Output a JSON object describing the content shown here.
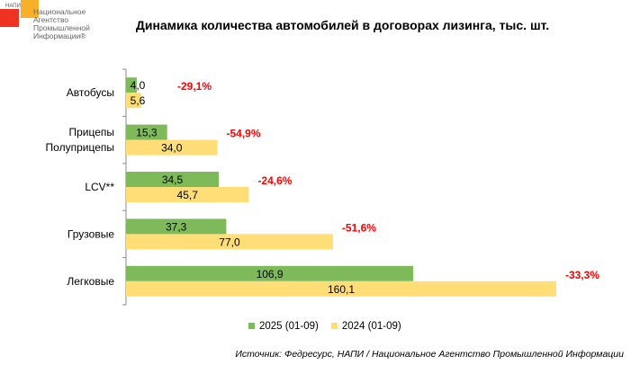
{
  "logo": {
    "small": "НАПИ",
    "lines": [
      "Национальное",
      "Агентство",
      "Промышленной",
      "Информации®"
    ]
  },
  "chart_data": {
    "type": "bar",
    "orientation": "horizontal",
    "title": "Динамика количества автомобилей в договорах лизинга, тыс. шт.",
    "categories": [
      "Автобусы",
      "Прицепы\nПолуприцепы",
      "LCV**",
      "Грузовые",
      "Легковые"
    ],
    "series": [
      {
        "name": "2025 (01-09)",
        "color": "#7fba5a",
        "values": [
          4.0,
          15.3,
          34.5,
          37.3,
          106.9
        ],
        "labels": [
          "4,0",
          "15,3",
          "34,5",
          "37,3",
          "106,9"
        ]
      },
      {
        "name": "2024 (01-09)",
        "color": "#ffdd77",
        "values": [
          5.6,
          34.0,
          45.7,
          77.0,
          160.1
        ],
        "labels": [
          "5,6",
          "34,0",
          "45,7",
          "77,0",
          "160,1"
        ]
      }
    ],
    "changes": [
      "-29,1%",
      "-54,9%",
      "-24,6%",
      "-51,6%",
      "-33,3%"
    ],
    "xlim": [
      0,
      160.1
    ],
    "legend": "bottom"
  },
  "source": "Источник: Федресурс, НАПИ / Национальное Агентство Промышленной Информации"
}
